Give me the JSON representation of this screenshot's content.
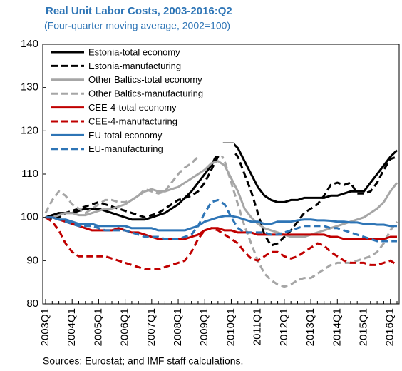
{
  "chart_data": {
    "type": "line",
    "title": "Real Unit Labor Costs, 2003-2016:Q2",
    "subtitle": "(Four-quarter moving average, 2002=100)",
    "note": "Sources: Eurostat; and IMF staff calculations.",
    "categories": [
      "2003Q1",
      null,
      null,
      null,
      "2004Q1",
      null,
      null,
      null,
      "2005Q1",
      null,
      null,
      null,
      "2006Q1",
      null,
      null,
      null,
      "2007Q1",
      null,
      null,
      null,
      "2008Q1",
      null,
      null,
      null,
      "2009Q1",
      null,
      null,
      null,
      "2010Q1",
      null,
      null,
      null,
      "2011Q1",
      null,
      null,
      null,
      "2012Q1",
      null,
      null,
      null,
      "2013Q1",
      null,
      null,
      null,
      "2014Q1",
      null,
      null,
      null,
      "2015Q1",
      null,
      null,
      null,
      "2016Q1",
      null
    ],
    "ylim": [
      80,
      140
    ],
    "yticks": [
      80,
      90,
      100,
      110,
      120,
      130,
      140
    ],
    "legend": "top-left",
    "series": [
      {
        "name": "Estonia-total economy",
        "color": "#000000",
        "dashed": false,
        "values": [
          100,
          100.5,
          101,
          101,
          101,
          101.5,
          102,
          102,
          102,
          101.5,
          101,
          100.5,
          100,
          99.5,
          99.5,
          99.5,
          100,
          100.5,
          101,
          102,
          103,
          104.5,
          106,
          108,
          110,
          112,
          115,
          117.5,
          117.5,
          116,
          113,
          110,
          107,
          105,
          104,
          103.5,
          103.5,
          104,
          104,
          104.5,
          104.5,
          104.5,
          104.5,
          105,
          105,
          105.5,
          106,
          106,
          106,
          108,
          110,
          112,
          114,
          115.5
        ]
      },
      {
        "name": "Estonia-manufacturing",
        "color": "#000000",
        "dashed": true,
        "values": [
          100,
          99.5,
          100,
          101,
          101.5,
          102,
          102.5,
          103,
          103.5,
          103,
          102.5,
          102,
          101.5,
          101,
          100.5,
          100,
          100.5,
          101,
          102,
          103,
          104,
          104.5,
          105,
          106,
          108,
          111,
          114,
          116,
          116,
          114,
          110,
          106,
          101,
          96,
          93.5,
          94,
          95.5,
          97,
          99,
          101,
          102,
          103,
          105,
          107.5,
          108,
          107.5,
          108,
          105.5,
          105.5,
          106,
          108,
          111,
          113.5,
          114
        ]
      },
      {
        "name": "Other Baltics-total economy",
        "color": "#a6a6a6",
        "dashed": false,
        "values": [
          100,
          100,
          100.5,
          101,
          101,
          100.5,
          100.5,
          101,
          101.5,
          102,
          102,
          102.5,
          103,
          104,
          105,
          106,
          106.5,
          106,
          106,
          106.5,
          107,
          108,
          109,
          110,
          111,
          112.5,
          113,
          112,
          109,
          106,
          102,
          100,
          98.5,
          97.5,
          97,
          96.5,
          96,
          95.5,
          95.5,
          95.5,
          96,
          96.5,
          97,
          97.5,
          98,
          98.5,
          99,
          99.5,
          100,
          101,
          102,
          103.5,
          106,
          108
        ]
      },
      {
        "name": "Other Baltics-manufacturing",
        "color": "#a6a6a6",
        "dashed": true,
        "values": [
          101,
          104,
          106,
          105,
          103,
          102,
          101,
          102,
          103,
          104,
          104,
          103.5,
          103.5,
          104,
          105,
          106.5,
          106,
          105.5,
          106,
          108,
          110,
          111.5,
          112.5,
          114,
          116,
          117,
          116,
          113,
          108,
          103,
          98,
          94,
          90,
          87,
          85.5,
          84.5,
          84,
          84.5,
          85.5,
          86,
          86,
          87,
          88,
          89,
          89.5,
          89.5,
          89.5,
          90,
          90.5,
          91,
          92,
          94,
          97,
          99
        ]
      },
      {
        "name": "CEE-4-total economy",
        "color": "#c00000",
        "dashed": false,
        "values": [
          100,
          100,
          99.5,
          99,
          98.5,
          98,
          97.5,
          97,
          97,
          97,
          97,
          97.5,
          97,
          96.5,
          96.5,
          96,
          95.5,
          95,
          95,
          95,
          95,
          95,
          95.5,
          96,
          97,
          97.5,
          97.5,
          97,
          97,
          96.5,
          96.5,
          96.5,
          96,
          96,
          96,
          96,
          96,
          96,
          96,
          96,
          96,
          96,
          96,
          95.5,
          95.5,
          95,
          95,
          95,
          95,
          95,
          95,
          95,
          95.5,
          95.5
        ]
      },
      {
        "name": "CEE-4-manufacturing",
        "color": "#c00000",
        "dashed": true,
        "values": [
          100,
          99,
          97,
          94,
          92,
          91,
          91,
          91,
          91,
          91,
          90.5,
          90,
          89.5,
          89,
          88.5,
          88,
          88,
          88,
          88.5,
          89,
          89.5,
          90,
          92,
          95,
          97,
          97.5,
          97,
          96,
          95,
          94,
          92,
          90.5,
          90,
          91,
          92,
          92,
          91,
          90.5,
          91,
          92,
          93,
          94,
          93.5,
          92,
          91,
          90,
          89.5,
          89.5,
          89.5,
          89,
          89,
          89.5,
          90,
          89
        ]
      },
      {
        "name": "EU-total economy",
        "color": "#2e75b6",
        "dashed": false,
        "values": [
          100,
          100,
          99.5,
          99.5,
          99,
          98.5,
          98.5,
          98.5,
          98,
          98,
          98,
          98,
          98,
          97.5,
          97.5,
          97.5,
          97.5,
          97,
          97,
          97,
          97,
          97,
          97.5,
          98,
          99,
          99.5,
          100,
          100.3,
          100.3,
          100,
          99.5,
          99,
          99,
          98.5,
          98.5,
          99,
          99,
          99,
          99.3,
          99.5,
          99.5,
          99.3,
          99.3,
          99.2,
          99,
          99,
          98.8,
          98.8,
          98.5,
          98.5,
          98.3,
          98.3,
          98,
          98
        ]
      },
      {
        "name": "EU-manufacturing",
        "color": "#2e75b6",
        "dashed": true,
        "values": [
          100,
          100,
          99.5,
          99,
          98.5,
          98,
          98,
          98,
          97.5,
          97,
          97,
          97,
          97,
          96.5,
          96,
          95.5,
          95.5,
          95.5,
          95,
          95,
          95,
          95.5,
          96,
          98,
          101,
          103.5,
          104,
          103,
          100,
          97.5,
          96.5,
          96.5,
          96.5,
          96.5,
          96,
          96,
          96.5,
          97,
          97.5,
          98,
          98,
          98,
          98,
          97.5,
          97.5,
          97,
          96.5,
          96,
          95.5,
          95,
          94.5,
          94.5,
          94.5,
          94.5
        ]
      }
    ]
  }
}
